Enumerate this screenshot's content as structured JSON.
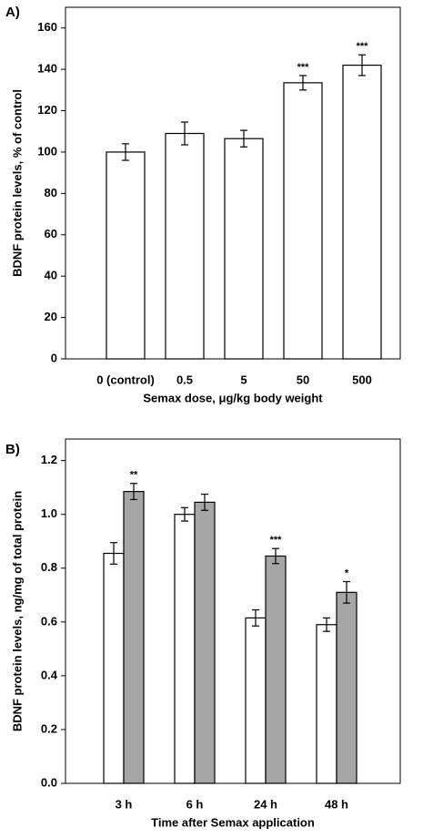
{
  "chart_data": [
    {
      "type": "bar",
      "panel_label": "A)",
      "ylabel": "BDNF protein levels, % of control",
      "xlabel": "Semax dose, μg/kg body weight",
      "categories": [
        "0 (control)",
        "0.5",
        "5",
        "50",
        "500"
      ],
      "series": [
        {
          "color": "#ffffff",
          "values": [
            100,
            109,
            106.5,
            133.5,
            142
          ],
          "errors": [
            4,
            5.5,
            4,
            3.5,
            5
          ],
          "significance": [
            null,
            null,
            null,
            "***",
            "***"
          ]
        }
      ],
      "ylim": [
        0,
        170
      ],
      "yticks": [
        0,
        20,
        40,
        60,
        80,
        100,
        120,
        140,
        160
      ]
    },
    {
      "type": "bar",
      "panel_label": "B)",
      "ylabel": "BDNF protein levels, ng/mg of total protein",
      "xlabel": "Time after Semax application",
      "categories": [
        "3 h",
        "6 h",
        "24 h",
        "48 h"
      ],
      "series": [
        {
          "color": "#ffffff",
          "values": [
            0.855,
            1.0,
            0.615,
            0.59
          ],
          "errors": [
            0.04,
            0.025,
            0.03,
            0.025
          ],
          "significance": [
            null,
            null,
            null,
            null
          ]
        },
        {
          "color": "#a6a6a6",
          "values": [
            1.085,
            1.045,
            0.845,
            0.71
          ],
          "errors": [
            0.03,
            0.03,
            0.028,
            0.04
          ],
          "significance": [
            "**",
            null,
            "***",
            "*"
          ]
        }
      ],
      "ylim": [
        0,
        1.28
      ],
      "yticks": [
        {
          "value": 0,
          "label": "0.0"
        },
        0.2,
        0.4,
        0.6,
        0.8,
        {
          "value": 1,
          "label": "1.0"
        },
        1.2
      ]
    }
  ]
}
